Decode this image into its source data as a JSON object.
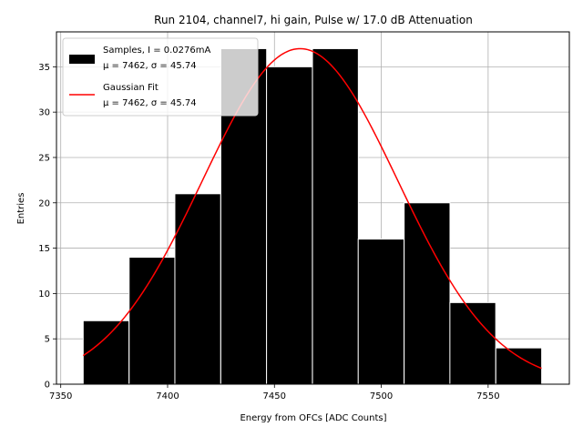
{
  "chart_data": {
    "type": "bar",
    "title": "Run 2104, channel7, hi gain, Pulse w/ 17.0 dB Attenuation",
    "xlabel": "Energy from OFCs [ADC Counts]",
    "ylabel": "Entries",
    "xlim": [
      7348,
      7588
    ],
    "ylim": [
      0,
      38.85
    ],
    "xticks": [
      7350,
      7400,
      7450,
      7500,
      7550
    ],
    "yticks": [
      0,
      5,
      10,
      15,
      20,
      25,
      30,
      35
    ],
    "grid": true,
    "bin_width": 21.45,
    "bins": [
      {
        "left": 7360.5,
        "count": 7
      },
      {
        "left": 7382.0,
        "count": 14
      },
      {
        "left": 7403.4,
        "count": 21
      },
      {
        "left": 7424.9,
        "count": 37
      },
      {
        "left": 7446.3,
        "count": 35
      },
      {
        "left": 7467.8,
        "count": 37
      },
      {
        "left": 7489.2,
        "count": 16
      },
      {
        "left": 7510.7,
        "count": 20
      },
      {
        "left": 7532.1,
        "count": 9
      },
      {
        "left": 7553.6,
        "count": 4
      }
    ],
    "fit": {
      "type": "gaussian",
      "mu": 7462,
      "sigma": 45.74,
      "amplitude": 37.0,
      "x_range": [
        7360.5,
        7575.0
      ],
      "color": "#ff0000"
    },
    "bar_color": "#000000",
    "bar_edge_color": "#ffffff",
    "legend": {
      "placement": "top-left",
      "entries": [
        {
          "label": "Samples, I = 0.0276mA",
          "stats": "μ = 7462, σ = 45.74",
          "marker": "bar"
        },
        {
          "label": "Gaussian Fit",
          "stats": "μ = 7462, σ = 45.74",
          "marker": "line"
        }
      ]
    }
  }
}
